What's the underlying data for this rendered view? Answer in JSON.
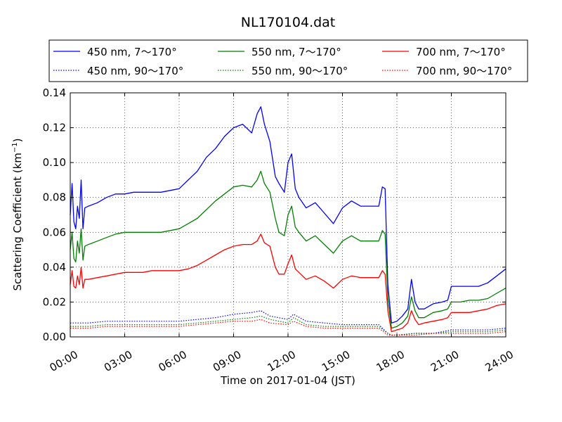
{
  "chart_data": {
    "type": "line",
    "title": "NL170104.dat",
    "xlabel": "Time on 2017-01-04 (JST)",
    "ylabel": "Scattering Coefficient (km",
    "ylabel_sup": "−1",
    "ylabel_close": ")",
    "xlim": [
      0,
      24
    ],
    "ylim": [
      0,
      0.14
    ],
    "x_tick_values": [
      0,
      3,
      6,
      9,
      12,
      15,
      18,
      21,
      24
    ],
    "x_tick_labels": [
      "00:00",
      "03:00",
      "06:00",
      "09:00",
      "12:00",
      "15:00",
      "18:00",
      "21:00",
      "24:00"
    ],
    "y_tick_values": [
      0,
      0.02,
      0.04,
      0.06,
      0.08,
      0.1,
      0.12,
      0.14
    ],
    "y_tick_labels": [
      "0.00",
      "0.02",
      "0.04",
      "0.06",
      "0.08",
      "0.10",
      "0.12",
      "0.14"
    ],
    "grid": true,
    "legend_position": "top, above plot, three columns",
    "series": [
      {
        "name": "450 nm, 7～170°",
        "color": "#0000ff",
        "style": "solid",
        "x": [
          0,
          0.1,
          0.2,
          0.3,
          0.4,
          0.5,
          0.6,
          0.7,
          0.8,
          1.0,
          1.5,
          2.0,
          2.5,
          3.0,
          3.5,
          4.0,
          4.5,
          5.0,
          5.5,
          6.0,
          6.5,
          7.0,
          7.5,
          8.0,
          8.5,
          9.0,
          9.5,
          10.0,
          10.3,
          10.5,
          10.7,
          11.0,
          11.3,
          11.5,
          11.8,
          12.0,
          12.2,
          12.4,
          12.6,
          13.0,
          13.5,
          14.0,
          14.5,
          15.0,
          15.5,
          16.0,
          16.5,
          17.0,
          17.2,
          17.35,
          17.5,
          17.7,
          18.0,
          18.3,
          18.6,
          18.8,
          19.0,
          19.2,
          19.5,
          20.0,
          20.5,
          20.8,
          21.0,
          21.5,
          22.0,
          22.5,
          23.0,
          23.5,
          24.0
        ],
        "y": [
          0.07,
          0.088,
          0.066,
          0.062,
          0.075,
          0.068,
          0.09,
          0.062,
          0.074,
          0.075,
          0.077,
          0.08,
          0.082,
          0.082,
          0.083,
          0.083,
          0.083,
          0.083,
          0.084,
          0.085,
          0.09,
          0.095,
          0.103,
          0.108,
          0.115,
          0.12,
          0.122,
          0.117,
          0.128,
          0.132,
          0.122,
          0.112,
          0.092,
          0.088,
          0.083,
          0.1,
          0.105,
          0.085,
          0.08,
          0.074,
          0.077,
          0.071,
          0.065,
          0.074,
          0.078,
          0.075,
          0.075,
          0.075,
          0.086,
          0.085,
          0.03,
          0.008,
          0.009,
          0.012,
          0.016,
          0.033,
          0.02,
          0.016,
          0.016,
          0.019,
          0.02,
          0.021,
          0.029,
          0.029,
          0.029,
          0.029,
          0.031,
          0.035,
          0.039
        ]
      },
      {
        "name": "450 nm, 90～170°",
        "color": "#0000ff",
        "style": "dotted",
        "x": [
          0,
          1,
          2,
          3,
          4,
          5,
          6,
          7,
          8,
          9,
          10,
          10.5,
          11,
          12,
          12.3,
          13,
          14,
          15,
          16,
          17,
          17.5,
          17.7,
          18,
          19,
          20,
          21,
          22,
          23,
          24
        ],
        "y": [
          0.008,
          0.008,
          0.009,
          0.009,
          0.009,
          0.009,
          0.009,
          0.01,
          0.011,
          0.013,
          0.014,
          0.015,
          0.012,
          0.01,
          0.013,
          0.009,
          0.008,
          0.007,
          0.007,
          0.007,
          0.002,
          0.001,
          0.001,
          0.002,
          0.002,
          0.004,
          0.004,
          0.004,
          0.005
        ]
      },
      {
        "name": "550 nm, 7～170°",
        "color": "#008000",
        "style": "solid",
        "x": [
          0,
          0.1,
          0.2,
          0.3,
          0.4,
          0.5,
          0.6,
          0.7,
          0.8,
          1.0,
          1.5,
          2.0,
          2.5,
          3.0,
          3.5,
          4.0,
          4.5,
          5.0,
          5.5,
          6.0,
          6.5,
          7.0,
          7.5,
          8.0,
          8.5,
          9.0,
          9.5,
          10.0,
          10.3,
          10.5,
          10.7,
          11.0,
          11.3,
          11.5,
          11.8,
          12.0,
          12.2,
          12.4,
          12.6,
          13.0,
          13.5,
          14.0,
          14.5,
          15.0,
          15.5,
          16.0,
          16.5,
          17.0,
          17.2,
          17.35,
          17.5,
          17.7,
          18.0,
          18.3,
          18.6,
          18.8,
          19.0,
          19.2,
          19.5,
          20.0,
          20.5,
          20.8,
          21.0,
          21.5,
          22.0,
          22.5,
          23.0,
          23.5,
          24.0
        ],
        "y": [
          0.05,
          0.06,
          0.045,
          0.043,
          0.055,
          0.048,
          0.062,
          0.044,
          0.052,
          0.053,
          0.055,
          0.057,
          0.059,
          0.06,
          0.06,
          0.06,
          0.06,
          0.06,
          0.061,
          0.062,
          0.065,
          0.068,
          0.073,
          0.078,
          0.082,
          0.086,
          0.087,
          0.086,
          0.09,
          0.095,
          0.088,
          0.083,
          0.068,
          0.06,
          0.058,
          0.07,
          0.075,
          0.063,
          0.06,
          0.055,
          0.058,
          0.053,
          0.048,
          0.055,
          0.058,
          0.055,
          0.055,
          0.055,
          0.061,
          0.059,
          0.022,
          0.005,
          0.006,
          0.008,
          0.012,
          0.023,
          0.015,
          0.011,
          0.011,
          0.014,
          0.015,
          0.016,
          0.02,
          0.02,
          0.021,
          0.021,
          0.022,
          0.025,
          0.028
        ]
      },
      {
        "name": "550 nm, 90～170°",
        "color": "#008000",
        "style": "dotted",
        "x": [
          0,
          1,
          2,
          3,
          4,
          5,
          6,
          7,
          8,
          9,
          10,
          10.5,
          11,
          12,
          12.3,
          13,
          14,
          15,
          16,
          17,
          17.5,
          17.7,
          18,
          19,
          20,
          21,
          22,
          23,
          24
        ],
        "y": [
          0.006,
          0.006,
          0.007,
          0.007,
          0.007,
          0.007,
          0.007,
          0.008,
          0.009,
          0.01,
          0.011,
          0.012,
          0.01,
          0.008,
          0.011,
          0.007,
          0.006,
          0.006,
          0.006,
          0.006,
          0.002,
          0.001,
          0.001,
          0.002,
          0.002,
          0.003,
          0.003,
          0.003,
          0.004
        ]
      },
      {
        "name": "700 nm, 7～170°",
        "color": "#ff0000",
        "style": "solid",
        "x": [
          0,
          0.1,
          0.2,
          0.3,
          0.4,
          0.5,
          0.6,
          0.7,
          0.8,
          1.0,
          1.5,
          2.0,
          2.5,
          3.0,
          3.5,
          4.0,
          4.5,
          5.0,
          5.5,
          6.0,
          6.5,
          7.0,
          7.5,
          8.0,
          8.5,
          9.0,
          9.5,
          10.0,
          10.3,
          10.5,
          10.7,
          11.0,
          11.3,
          11.5,
          11.8,
          12.0,
          12.2,
          12.4,
          12.6,
          13.0,
          13.5,
          14.0,
          14.5,
          15.0,
          15.5,
          16.0,
          16.5,
          17.0,
          17.2,
          17.35,
          17.5,
          17.7,
          18.0,
          18.3,
          18.6,
          18.8,
          19.0,
          19.2,
          19.5,
          20.0,
          20.5,
          20.8,
          21.0,
          21.5,
          22.0,
          22.5,
          23.0,
          23.5,
          24.0
        ],
        "y": [
          0.03,
          0.038,
          0.029,
          0.028,
          0.035,
          0.03,
          0.04,
          0.028,
          0.033,
          0.033,
          0.034,
          0.035,
          0.036,
          0.037,
          0.037,
          0.037,
          0.038,
          0.038,
          0.038,
          0.038,
          0.039,
          0.041,
          0.044,
          0.047,
          0.05,
          0.052,
          0.053,
          0.053,
          0.055,
          0.059,
          0.054,
          0.052,
          0.04,
          0.036,
          0.036,
          0.042,
          0.047,
          0.039,
          0.037,
          0.033,
          0.035,
          0.032,
          0.028,
          0.033,
          0.035,
          0.034,
          0.034,
          0.034,
          0.038,
          0.036,
          0.015,
          0.003,
          0.004,
          0.005,
          0.008,
          0.015,
          0.01,
          0.007,
          0.008,
          0.009,
          0.01,
          0.011,
          0.014,
          0.014,
          0.014,
          0.015,
          0.016,
          0.018,
          0.019
        ]
      },
      {
        "name": "700 nm, 90～170°",
        "color": "#ff0000",
        "style": "dotted",
        "x": [
          0,
          1,
          2,
          3,
          4,
          5,
          6,
          7,
          8,
          9,
          10,
          10.5,
          11,
          12,
          12.3,
          13,
          14,
          15,
          16,
          17,
          17.5,
          17.7,
          18,
          19,
          20,
          21,
          22,
          23,
          24
        ],
        "y": [
          0.005,
          0.005,
          0.006,
          0.006,
          0.006,
          0.006,
          0.006,
          0.007,
          0.008,
          0.009,
          0.009,
          0.01,
          0.008,
          0.007,
          0.009,
          0.006,
          0.005,
          0.005,
          0.005,
          0.005,
          0.001,
          0.001,
          0.001,
          0.001,
          0.002,
          0.002,
          0.002,
          0.002,
          0.003
        ]
      }
    ]
  }
}
